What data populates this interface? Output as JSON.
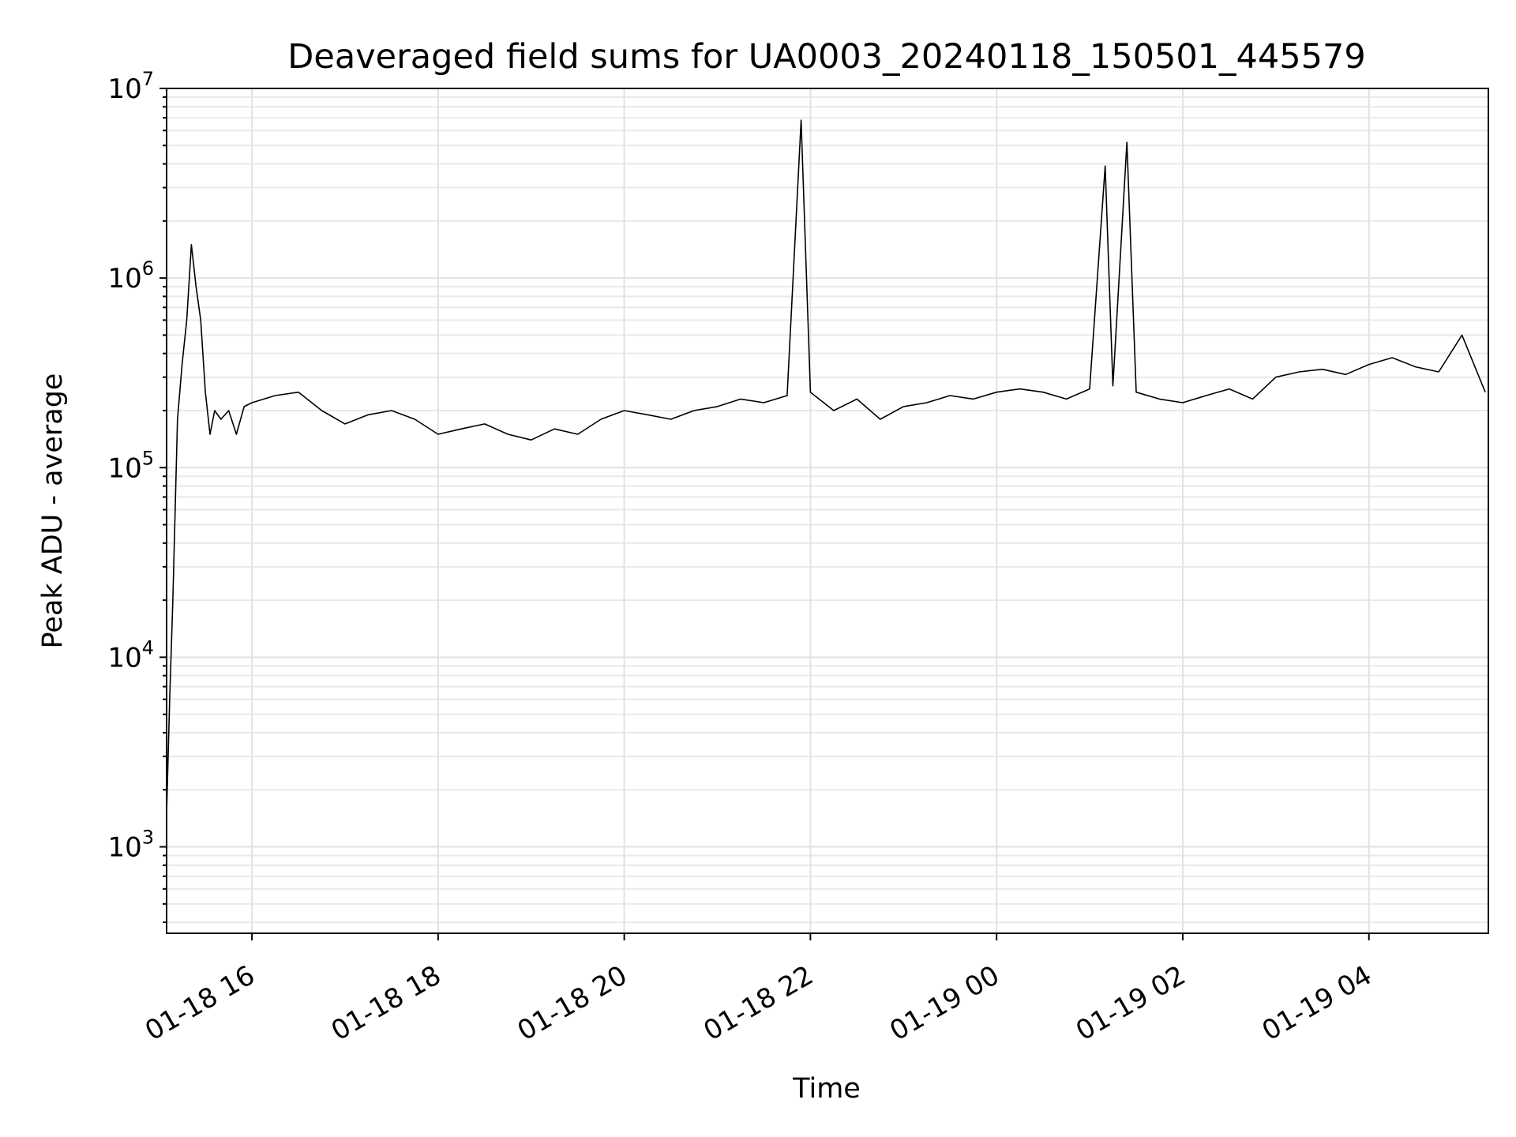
{
  "chart_data": {
    "type": "line",
    "title": "Deaveraged field sums for UA0003_20240118_150501_445579",
    "xlabel": "Time",
    "ylabel": "Peak ADU - average",
    "yscale": "log",
    "ylim": [
      350,
      10000000
    ],
    "xlim": [
      "2024-01-18 15:05",
      "2024-01-19 05:17"
    ],
    "grid": true,
    "series_color": "#000000",
    "x_ticks": [
      {
        "value": "2024-01-18 16:00",
        "label": "01-18 16"
      },
      {
        "value": "2024-01-18 18:00",
        "label": "01-18 18"
      },
      {
        "value": "2024-01-18 20:00",
        "label": "01-18 20"
      },
      {
        "value": "2024-01-18 22:00",
        "label": "01-18 22"
      },
      {
        "value": "2024-01-19 00:00",
        "label": "01-19 00"
      },
      {
        "value": "2024-01-19 02:00",
        "label": "01-19 02"
      },
      {
        "value": "2024-01-19 04:00",
        "label": "01-19 04"
      }
    ],
    "y_ticks": [
      {
        "value": 1000,
        "base": "10",
        "exp": "3"
      },
      {
        "value": 10000,
        "base": "10",
        "exp": "4"
      },
      {
        "value": 100000,
        "base": "10",
        "exp": "5"
      },
      {
        "value": 1000000,
        "base": "10",
        "exp": "6"
      },
      {
        "value": 10000000,
        "base": "10",
        "exp": "7"
      }
    ],
    "series": [
      {
        "x": [
          "2024-01-18 15:05",
          "2024-01-18 15:07",
          "2024-01-18 15:09",
          "2024-01-18 15:12",
          "2024-01-18 15:15",
          "2024-01-18 15:18",
          "2024-01-18 15:21",
          "2024-01-18 15:24",
          "2024-01-18 15:27",
          "2024-01-18 15:30",
          "2024-01-18 15:33",
          "2024-01-18 15:36",
          "2024-01-18 15:40",
          "2024-01-18 15:45",
          "2024-01-18 15:50",
          "2024-01-18 15:55",
          "2024-01-18 16:00",
          "2024-01-18 16:15",
          "2024-01-18 16:30",
          "2024-01-18 16:45",
          "2024-01-18 17:00",
          "2024-01-18 17:15",
          "2024-01-18 17:30",
          "2024-01-18 17:45",
          "2024-01-18 18:00",
          "2024-01-18 18:15",
          "2024-01-18 18:30",
          "2024-01-18 18:45",
          "2024-01-18 19:00",
          "2024-01-18 19:15",
          "2024-01-18 19:30",
          "2024-01-18 19:45",
          "2024-01-18 20:00",
          "2024-01-18 20:15",
          "2024-01-18 20:30",
          "2024-01-18 20:45",
          "2024-01-18 21:00",
          "2024-01-18 21:15",
          "2024-01-18 21:30",
          "2024-01-18 21:45",
          "2024-01-18 21:54",
          "2024-01-18 22:00",
          "2024-01-18 22:15",
          "2024-01-18 22:30",
          "2024-01-18 22:45",
          "2024-01-18 23:00",
          "2024-01-18 23:15",
          "2024-01-18 23:30",
          "2024-01-18 23:45",
          "2024-01-19 00:00",
          "2024-01-19 00:15",
          "2024-01-19 00:30",
          "2024-01-19 00:45",
          "2024-01-19 01:00",
          "2024-01-19 01:10",
          "2024-01-19 01:15",
          "2024-01-19 01:24",
          "2024-01-19 01:30",
          "2024-01-19 01:45",
          "2024-01-19 02:00",
          "2024-01-19 02:15",
          "2024-01-19 02:30",
          "2024-01-19 02:45",
          "2024-01-19 03:00",
          "2024-01-19 03:15",
          "2024-01-19 03:30",
          "2024-01-19 03:45",
          "2024-01-19 04:00",
          "2024-01-19 04:15",
          "2024-01-19 04:30",
          "2024-01-19 04:45",
          "2024-01-19 05:00",
          "2024-01-19 05:15"
        ],
        "y": [
          1500,
          6000,
          20000,
          180000,
          350000,
          600000,
          1500000,
          900000,
          600000,
          250000,
          150000,
          200000,
          180000,
          200000,
          150000,
          210000,
          220000,
          240000,
          250000,
          200000,
          170000,
          190000,
          200000,
          180000,
          150000,
          160000,
          170000,
          150000,
          140000,
          160000,
          150000,
          180000,
          200000,
          190000,
          180000,
          200000,
          210000,
          230000,
          220000,
          240000,
          6800000,
          250000,
          200000,
          230000,
          180000,
          210000,
          220000,
          240000,
          230000,
          250000,
          260000,
          250000,
          230000,
          260000,
          3900000,
          270000,
          5200000,
          250000,
          230000,
          220000,
          240000,
          260000,
          230000,
          300000,
          320000,
          330000,
          310000,
          350000,
          380000,
          340000,
          320000,
          500000,
          250000
        ]
      }
    ]
  }
}
